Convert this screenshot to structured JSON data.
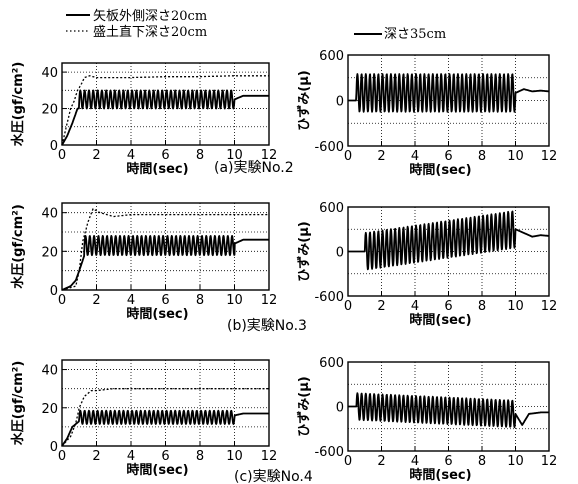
{
  "legend": {
    "left": [
      {
        "label": "矢板外側深さ20cm",
        "style": "solid"
      },
      {
        "label": "盛土直下深さ20cm",
        "style": "dotted"
      }
    ],
    "right": [
      {
        "label": "深さ35cm",
        "style": "solid"
      }
    ]
  },
  "panel_captions": [
    "(a)実験No.2",
    "(b)実験No.3",
    "(c)実験No.4"
  ],
  "chart_data": [
    {
      "type": "line",
      "caption": "(a)実験No.2",
      "xlabel": "時間(sec)",
      "ylabel": "水圧(gf/cm²)",
      "xlim": [
        0,
        12
      ],
      "ylim": [
        0,
        45
      ],
      "xticks": [
        0,
        2,
        4,
        6,
        8,
        10,
        12
      ],
      "yticks": [
        0,
        20,
        40
      ],
      "grid": true,
      "series": [
        {
          "name": "盛土直下深さ20cm",
          "style": "dotted",
          "x": [
            0,
            0.5,
            0.7,
            0.9,
            1.1,
            1.3,
            1.6,
            2.0,
            4.0,
            6.0,
            8.0,
            10.0,
            10.3,
            12.0
          ],
          "y": [
            0,
            20,
            24,
            30,
            33,
            37,
            38,
            37,
            37,
            37.5,
            37.5,
            38,
            38,
            38
          ]
        },
        {
          "name": "矢板外側深さ20cm",
          "style": "solid",
          "oscillation": {
            "start": 1.0,
            "end": 10.0,
            "mean": 25,
            "amplitude": 5,
            "frequency_hz": 4
          },
          "x": [
            0,
            0.3,
            0.6,
            0.9,
            10.0,
            10.5,
            11.0,
            12.0
          ],
          "y": [
            0,
            5,
            12,
            20,
            25,
            27,
            27,
            27
          ]
        }
      ]
    },
    {
      "type": "line",
      "caption": "(a)実験No.2",
      "xlabel": "時間(sec)",
      "ylabel": "ひずみ(μ)",
      "xlim": [
        0,
        12
      ],
      "ylim": [
        -600,
        600
      ],
      "xticks": [
        0,
        2,
        4,
        6,
        8,
        10,
        12
      ],
      "yticks": [
        -600,
        0,
        600
      ],
      "grid": true,
      "series": [
        {
          "name": "深さ35cm",
          "style": "solid",
          "oscillation": {
            "start": 0.5,
            "end": 10.0,
            "mean": 100,
            "amplitude": 250,
            "frequency_hz": 4
          },
          "x": [
            0,
            0.5,
            10.0,
            10.5,
            11.0,
            11.5,
            12.0
          ],
          "y": [
            0,
            0,
            100,
            150,
            120,
            130,
            120
          ]
        }
      ]
    },
    {
      "type": "line",
      "caption": "(b)実験No.3",
      "xlabel": "時間(sec)",
      "ylabel": "水圧(gf/cm²)",
      "xlim": [
        0,
        12
      ],
      "ylim": [
        0,
        45
      ],
      "xticks": [
        0,
        2,
        4,
        6,
        8,
        10,
        12
      ],
      "yticks": [
        0,
        20,
        40
      ],
      "grid": true,
      "series": [
        {
          "name": "盛土直下深さ20cm",
          "style": "dotted",
          "x": [
            0,
            0.8,
            1.0,
            1.2,
            1.5,
            1.8,
            2.2,
            3.0,
            4.0,
            6.0,
            8.0,
            10.0,
            12.0
          ],
          "y": [
            0,
            2,
            10,
            25,
            35,
            42,
            40,
            38,
            39,
            39,
            39,
            39,
            39
          ]
        },
        {
          "name": "矢板外側深さ20cm",
          "style": "solid",
          "oscillation": {
            "start": 1.3,
            "end": 10.0,
            "mean": 23,
            "amplitude": 5,
            "frequency_hz": 4
          },
          "x": [
            0,
            0.5,
            0.8,
            1.0,
            1.3,
            10.0,
            10.5,
            12.0
          ],
          "y": [
            0,
            2,
            5,
            10,
            18,
            24,
            26,
            26
          ]
        }
      ]
    },
    {
      "type": "line",
      "caption": "(b)実験No.3",
      "xlabel": "時間(sec)",
      "ylabel": "ひずみ(μ)",
      "xlim": [
        0,
        12
      ],
      "ylim": [
        -600,
        600
      ],
      "xticks": [
        0,
        2,
        4,
        6,
        8,
        10,
        12
      ],
      "yticks": [
        -600,
        0,
        600
      ],
      "grid": true,
      "series": [
        {
          "name": "深さ35cm",
          "style": "solid",
          "oscillation": {
            "start": 1.0,
            "end": 10.0,
            "mean_start": 0,
            "mean_end": 300,
            "amplitude": 250,
            "frequency_hz": 4
          },
          "x": [
            0,
            1.0,
            10.0,
            10.5,
            11.0,
            11.5,
            12.0
          ],
          "y": [
            0,
            0,
            300,
            250,
            200,
            220,
            210
          ]
        }
      ]
    },
    {
      "type": "line",
      "caption": "(c)実験No.4",
      "xlabel": "時間(sec)",
      "ylabel": "水圧(gf/cm²)",
      "xlim": [
        0,
        12
      ],
      "ylim": [
        0,
        45
      ],
      "xticks": [
        0,
        2,
        4,
        6,
        8,
        10,
        12
      ],
      "yticks": [
        0,
        20,
        40
      ],
      "grid": true,
      "series": [
        {
          "name": "盛土直下深さ20cm",
          "style": "dotted",
          "x": [
            0,
            0.5,
            0.8,
            1.0,
            1.3,
            1.7,
            2.0,
            3.0,
            6.0,
            10.0,
            12.0
          ],
          "y": [
            0,
            5,
            12,
            20,
            26,
            29,
            29,
            30,
            30,
            30,
            30
          ]
        },
        {
          "name": "矢板外側深さ20cm",
          "style": "solid",
          "oscillation": {
            "start": 1.0,
            "end": 10.0,
            "mean": 15,
            "amplitude": 3.5,
            "frequency_hz": 4
          },
          "x": [
            0,
            0.3,
            0.6,
            1.0,
            10.0,
            10.5,
            12.0
          ],
          "y": [
            0,
            4,
            10,
            13,
            16,
            17,
            17
          ]
        }
      ]
    },
    {
      "type": "line",
      "caption": "(c)実験No.4",
      "xlabel": "時間(sec)",
      "ylabel": "ひずみ(μ)",
      "xlim": [
        0,
        12
      ],
      "ylim": [
        -600,
        600
      ],
      "xticks": [
        0,
        2,
        4,
        6,
        8,
        10,
        12
      ],
      "yticks": [
        -600,
        0,
        600
      ],
      "grid": true,
      "series": [
        {
          "name": "深さ35cm",
          "style": "solid",
          "oscillation": {
            "start": 0.5,
            "end": 10.0,
            "mean_start": 0,
            "mean_end": -100,
            "amplitude": 180,
            "frequency_hz": 4
          },
          "x": [
            0,
            0.5,
            10.0,
            10.4,
            10.8,
            11.5,
            12.0
          ],
          "y": [
            0,
            0,
            -100,
            -250,
            -100,
            -80,
            -80
          ]
        }
      ]
    }
  ]
}
